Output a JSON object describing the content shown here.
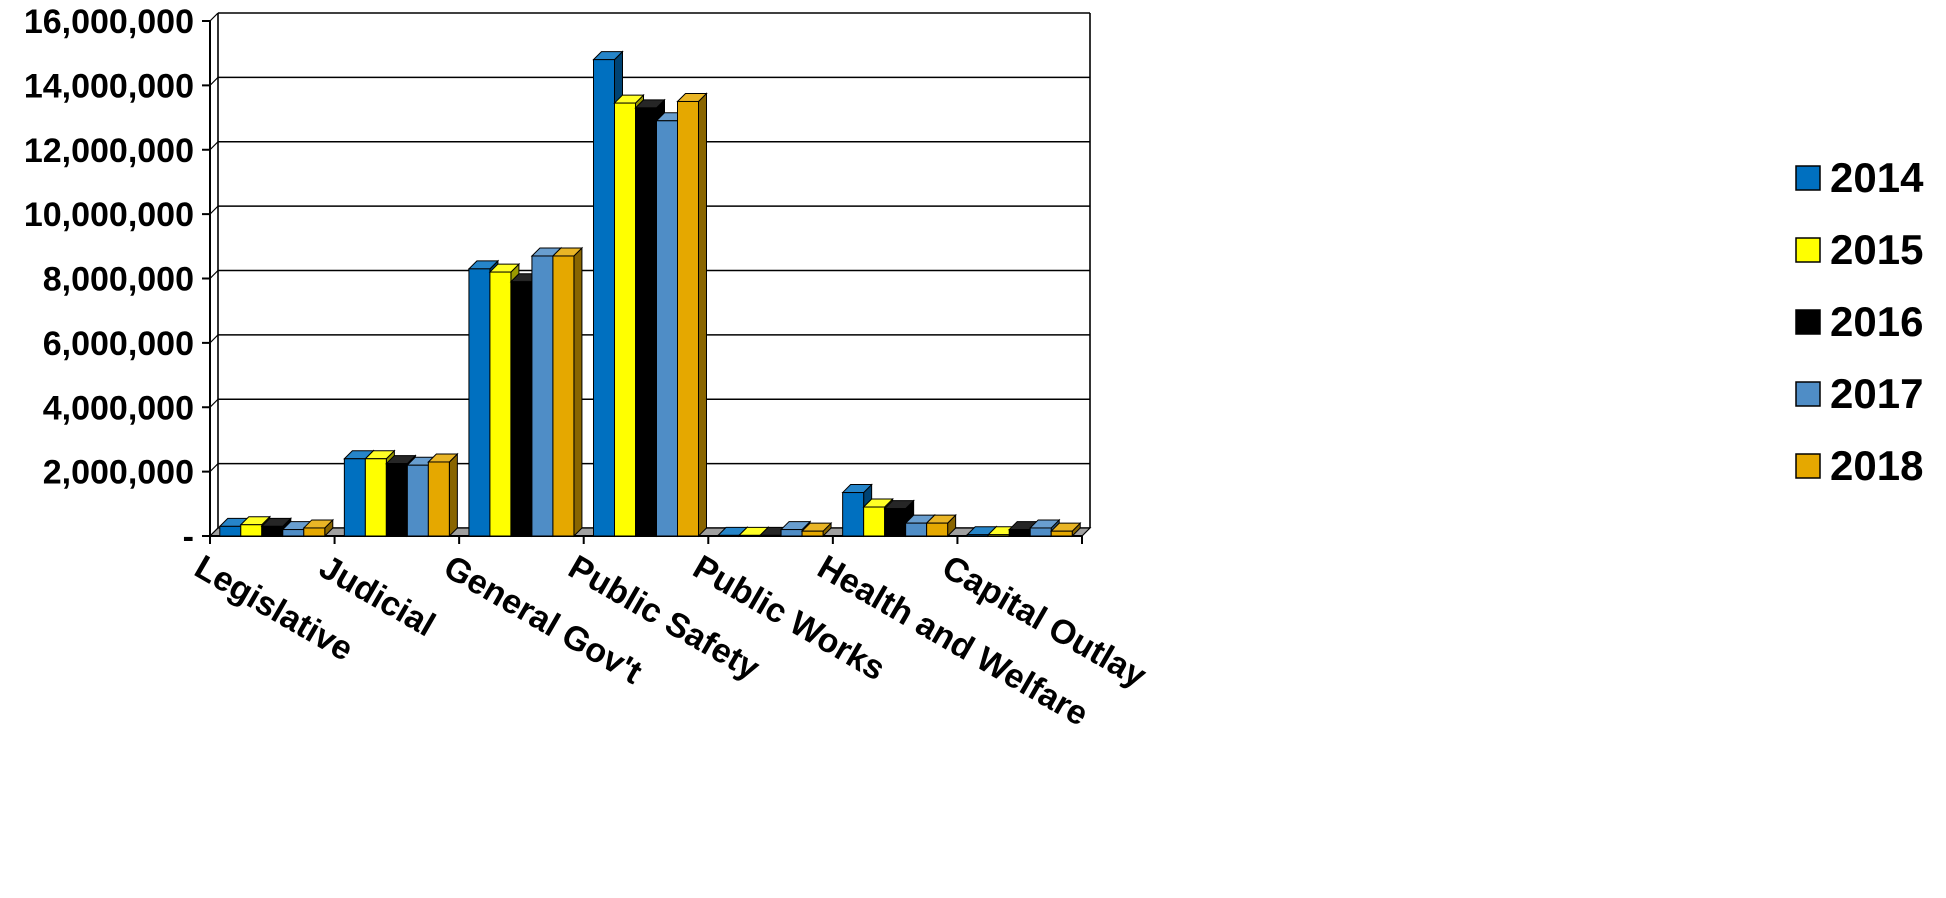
{
  "chart_data": {
    "type": "bar",
    "categories": [
      "Legislative",
      "Judicial",
      "General Gov't",
      "Public Safety",
      "Public Works",
      "Health and Welfare",
      "Capital Outlay"
    ],
    "series": [
      {
        "name": "2014",
        "color": "#0070C0",
        "values": [
          300000,
          2400000,
          8300000,
          14800000,
          20000,
          1350000,
          40000
        ]
      },
      {
        "name": "2015",
        "color": "#FFFF00",
        "values": [
          350000,
          2400000,
          8200000,
          13450000,
          20000,
          900000,
          40000
        ]
      },
      {
        "name": "2016",
        "color": "#000000",
        "values": [
          300000,
          2250000,
          7900000,
          13300000,
          20000,
          850000,
          200000
        ]
      },
      {
        "name": "2017",
        "color": "#4F8DC6",
        "values": [
          200000,
          2200000,
          8700000,
          12900000,
          200000,
          400000,
          250000
        ]
      },
      {
        "name": "2018",
        "color": "#E5A800",
        "values": [
          250000,
          2300000,
          8700000,
          13500000,
          150000,
          400000,
          150000
        ]
      }
    ],
    "ylim": [
      0,
      16000000
    ],
    "y_ticks": [
      {
        "value": 0,
        "label": "-"
      },
      {
        "value": 2000000,
        "label": "2,000,000"
      },
      {
        "value": 4000000,
        "label": "4,000,000"
      },
      {
        "value": 6000000,
        "label": "6,000,000"
      },
      {
        "value": 8000000,
        "label": "8,000,000"
      },
      {
        "value": 10000000,
        "label": "10,000,000"
      },
      {
        "value": 12000000,
        "label": "12,000,000"
      },
      {
        "value": 14000000,
        "label": "14,000,000"
      },
      {
        "value": 16000000,
        "label": "16,000,000"
      }
    ],
    "grid": true,
    "legend_position": "right",
    "style": "3d-clustered-column"
  }
}
